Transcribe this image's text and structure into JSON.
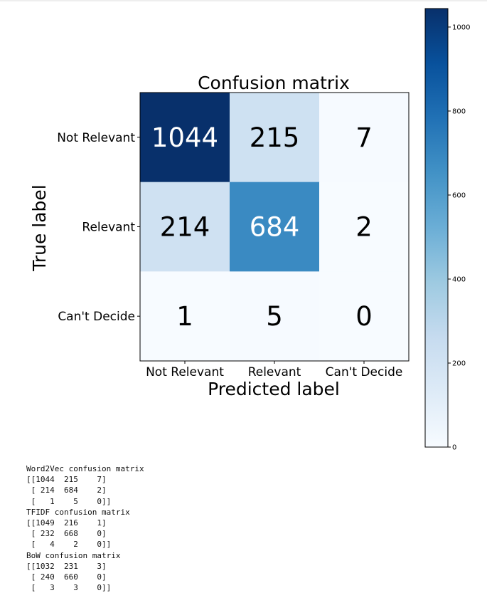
{
  "chart_data": {
    "type": "heatmap",
    "title": "Confusion matrix",
    "xlabel": "Predicted label",
    "ylabel": "True label",
    "x_categories": [
      "Not Relevant",
      "Relevant",
      "Can't Decide"
    ],
    "y_categories": [
      "Not Relevant",
      "Relevant",
      "Can't Decide"
    ],
    "values": [
      [
        1044,
        215,
        7
      ],
      [
        214,
        684,
        2
      ],
      [
        1,
        5,
        0
      ]
    ],
    "colormap": "Blues",
    "colorbar": {
      "min": 0,
      "max": 1044,
      "ticks": [
        0,
        200,
        400,
        600,
        800,
        1000
      ]
    }
  },
  "console": {
    "lines": [
      "Word2Vec confusion matrix",
      "[[1044  215    7]",
      " [ 214  684    2]",
      " [   1    5    0]]",
      "TFIDF confusion matrix",
      "[[1049  216    1]",
      " [ 232  668    0]",
      " [   4    2    0]]",
      "BoW confusion matrix",
      "[[1032  231    3]",
      " [ 240  660    0]",
      " [   3    3    0]]"
    ]
  }
}
